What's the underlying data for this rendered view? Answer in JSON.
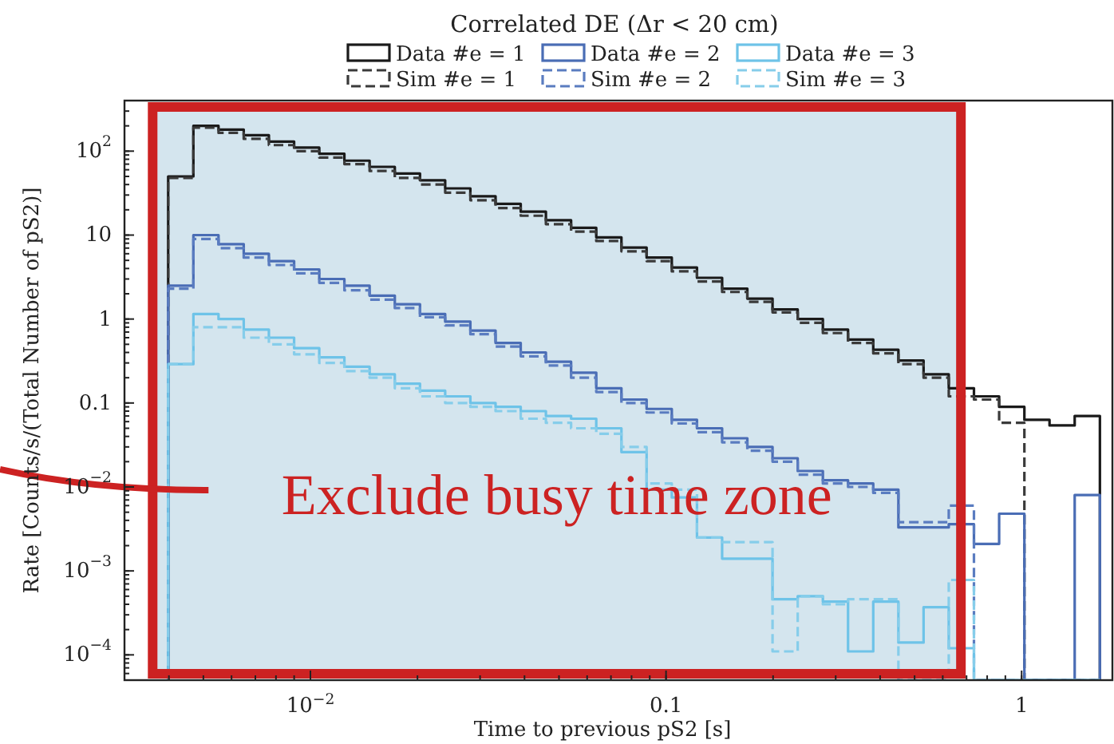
{
  "chart_data": {
    "type": "histogram",
    "title": "Correlated DE (Δr < 20 cm)",
    "xlabel": "Time to previous pS2 [s]",
    "ylabel": "Rate [Counts/s/(Total Number of pS2)]",
    "bins": [
      0.003981,
      0.004687,
      0.005515,
      0.006493,
      0.007642,
      0.008997,
      0.01059,
      0.01246,
      0.01467,
      0.01727,
      0.02033,
      0.02393,
      0.02817,
      0.03316,
      0.03903,
      0.04594,
      0.05408,
      0.06365,
      0.07492,
      0.08819,
      0.1038,
      0.1222,
      0.1438,
      0.1693,
      0.1993,
      0.2346,
      0.2761,
      0.325,
      0.3826,
      0.4503,
      0.53,
      0.6239,
      0.7344,
      0.8645,
      1.018,
      1.198,
      1.41,
      1.66
    ],
    "series": [
      {
        "name": "Data #e = 1",
        "color": "#1a1a1a",
        "line_style": "solid",
        "values": [
          50,
          200,
          180,
          155,
          130,
          110,
          93,
          77,
          65,
          54,
          45,
          36,
          29,
          23.5,
          19,
          15,
          12.2,
          9.4,
          7.1,
          5.4,
          4.1,
          3.1,
          2.3,
          1.75,
          1.3,
          1.0,
          0.75,
          0.57,
          0.43,
          0.32,
          0.22,
          0.15,
          0.12,
          0.09,
          0.063,
          0.054,
          0.07
        ]
      },
      {
        "name": "Sim #e = 1",
        "color": "#3a3a3a",
        "line_style": "dashed",
        "values": [
          48,
          190,
          165,
          140,
          118,
          100,
          84,
          70,
          58,
          48,
          40,
          32,
          26,
          21,
          17,
          13.5,
          11,
          8.5,
          6.4,
          4.9,
          3.7,
          2.8,
          2.1,
          1.6,
          1.2,
          0.9,
          0.68,
          0.52,
          0.39,
          0.29,
          0.2,
          0.12,
          0.11,
          0.058,
          null,
          null,
          null
        ]
      },
      {
        "name": "Data #e = 2",
        "color": "#4a6db5",
        "line_style": "solid",
        "values": [
          2.5,
          10,
          7.8,
          6.0,
          4.9,
          3.9,
          3.0,
          2.5,
          1.9,
          1.5,
          1.15,
          0.93,
          0.73,
          0.52,
          0.4,
          0.31,
          0.23,
          0.15,
          0.11,
          0.085,
          0.063,
          0.05,
          0.038,
          0.03,
          0.022,
          0.0155,
          0.012,
          0.011,
          0.0093,
          0.0033,
          0.0033,
          0.0036,
          0.0021,
          0.0048,
          null,
          null,
          0.008
        ]
      },
      {
        "name": "Sim #e = 2",
        "color": "#5a7cc0",
        "line_style": "dashed",
        "values": [
          2.3,
          9,
          7.0,
          5.4,
          4.4,
          3.5,
          2.7,
          2.2,
          1.7,
          1.35,
          1.05,
          0.84,
          0.66,
          0.47,
          0.36,
          0.28,
          0.2,
          0.135,
          0.1,
          0.077,
          0.057,
          0.045,
          0.034,
          0.027,
          0.02,
          0.014,
          0.011,
          0.01,
          0.0085,
          0.0038,
          0.0038,
          0.006,
          null,
          null,
          null,
          null,
          null
        ]
      },
      {
        "name": "Data #e = 3",
        "color": "#6ec3e8",
        "line_style": "solid",
        "values": [
          0.29,
          1.15,
          1.0,
          0.75,
          0.6,
          0.45,
          0.35,
          0.27,
          0.22,
          0.17,
          0.14,
          0.12,
          0.1,
          0.09,
          0.08,
          0.07,
          0.065,
          0.05,
          0.026,
          0.0093,
          0.0075,
          0.0025,
          0.0014,
          0.0014,
          0.00046,
          0.0005,
          0.00043,
          0.00011,
          0.00043,
          0.00014,
          0.00037,
          0.00012,
          null,
          null,
          null,
          null,
          null
        ]
      },
      {
        "name": "Sim #e = 3",
        "color": "#86cdea",
        "line_style": "dashed",
        "values": [
          0.29,
          0.8,
          0.8,
          0.6,
          0.5,
          0.38,
          0.3,
          0.24,
          0.2,
          0.15,
          0.12,
          0.1,
          0.09,
          0.08,
          0.065,
          0.058,
          0.05,
          0.043,
          0.03,
          0.011,
          0.0093,
          0.0025,
          0.0022,
          0.0022,
          0.00011,
          0.0005,
          0.0004,
          0.00046,
          0.00046,
          null,
          null,
          0.00078,
          null,
          null,
          null,
          null,
          null
        ]
      }
    ],
    "log": "xy",
    "xlim": [
      0.003,
      1.8
    ],
    "ylim": [
      5e-05,
      400
    ],
    "xticks": [
      {
        "value": 0.01,
        "label": "10$^{−2}$"
      },
      0.1,
      1
    ],
    "yticks": [
      {
        "value": 0.0001,
        "label": "10$^{−4}$"
      },
      {
        "value": 0.001,
        "label": "10$^{−3}$"
      },
      {
        "value": 0.01,
        "label": "10$^{−2}$"
      },
      0.1,
      1,
      10,
      {
        "value": 100,
        "label": "10$^{2}$"
      }
    ],
    "legend": "top",
    "bands": [
      {
        "axis": "x",
        "from": 0.0036,
        "to": 0.675,
        "label": "Exclude busy time zone",
        "color": "#d4e5ee"
      }
    ]
  }
}
